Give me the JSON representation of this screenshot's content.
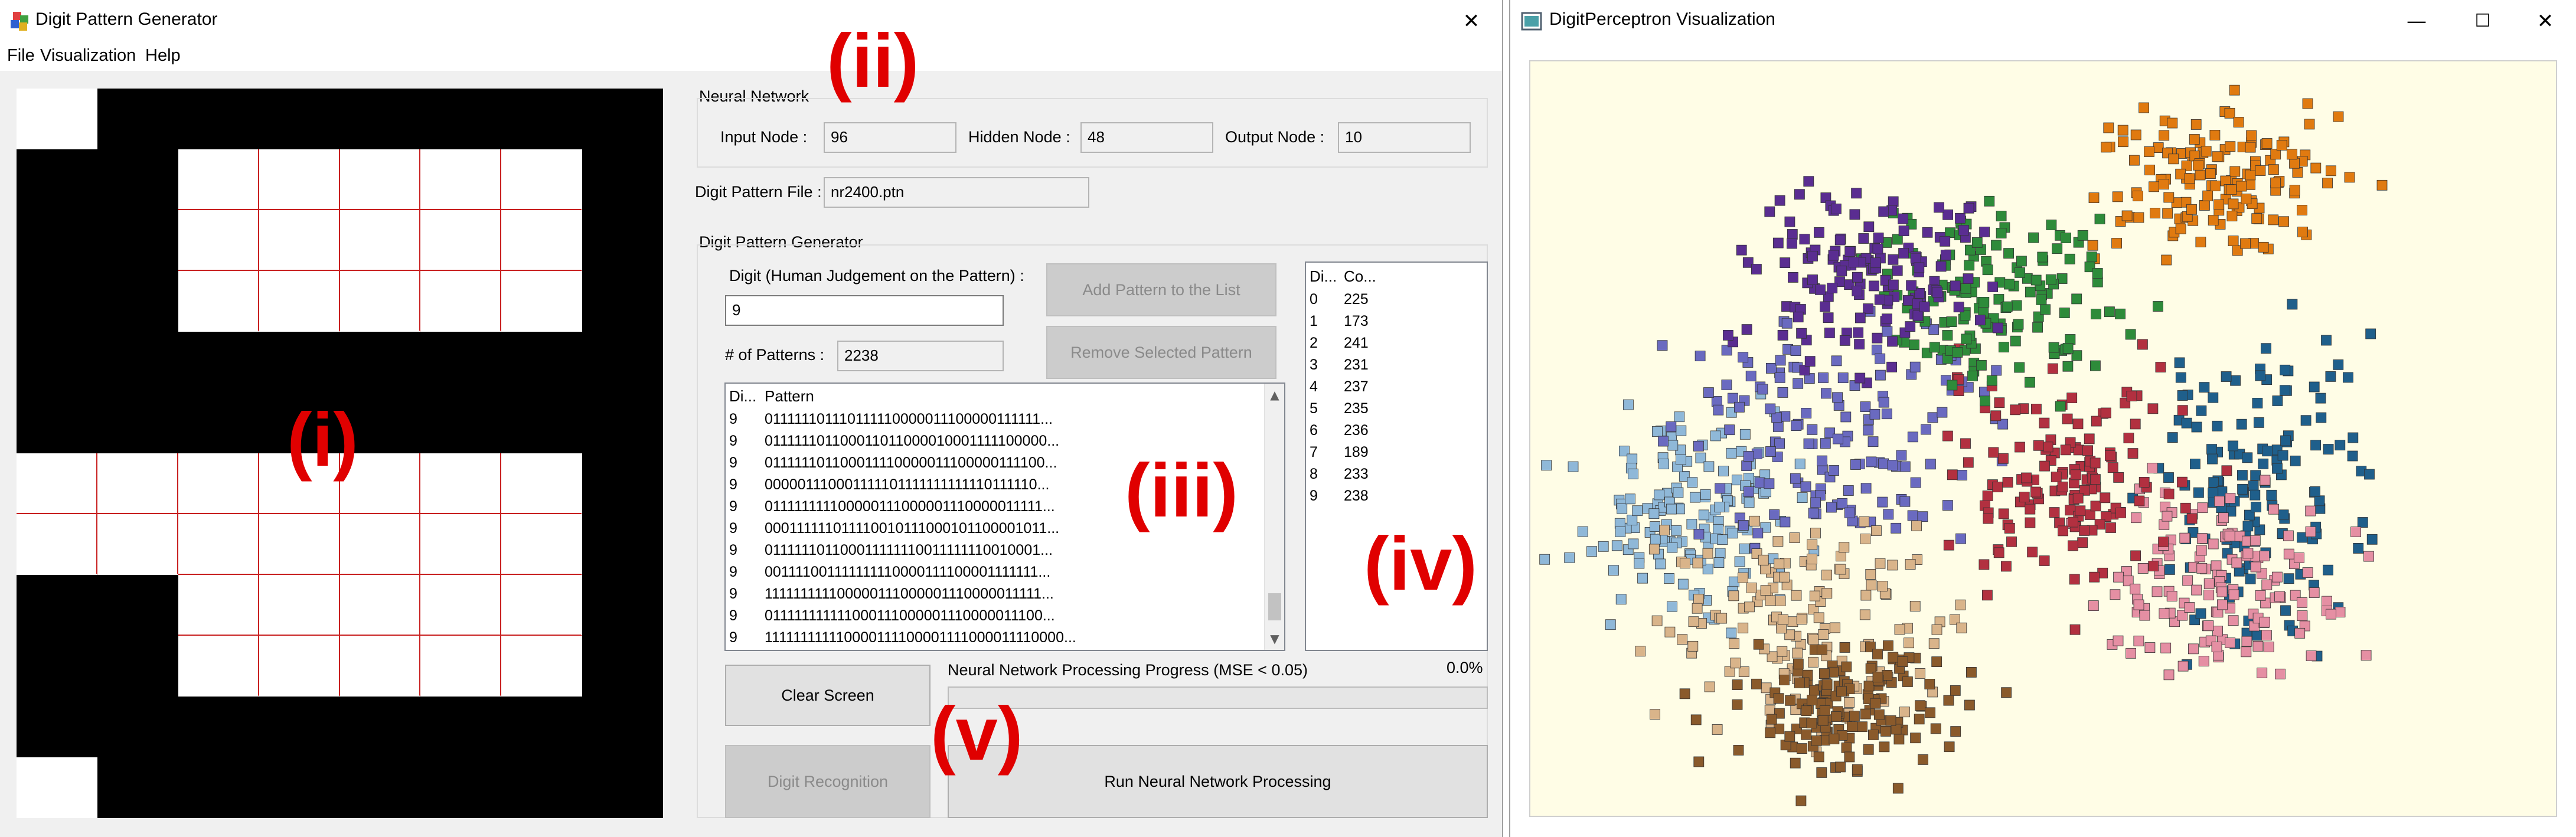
{
  "left_window": {
    "title": "Digit Pattern Generator",
    "icon": "app-colored-boxes-icon",
    "close_glyph": "✕"
  },
  "menu": {
    "file": "File",
    "visualization": "Visualization",
    "help": "Help"
  },
  "pattern_grid": {
    "rows": 12,
    "cols": 8,
    "cells": [
      [
        1,
        0,
        0,
        0,
        0,
        0,
        0,
        0
      ],
      [
        0,
        0,
        1,
        1,
        1,
        1,
        1,
        0
      ],
      [
        0,
        0,
        1,
        1,
        1,
        1,
        1,
        0
      ],
      [
        0,
        0,
        1,
        1,
        1,
        1,
        1,
        0
      ],
      [
        0,
        0,
        0,
        0,
        0,
        0,
        0,
        0
      ],
      [
        0,
        0,
        0,
        0,
        0,
        0,
        0,
        0
      ],
      [
        1,
        1,
        1,
        1,
        1,
        1,
        1,
        0
      ],
      [
        1,
        1,
        1,
        1,
        1,
        1,
        1,
        0
      ],
      [
        0,
        0,
        1,
        1,
        1,
        1,
        1,
        0
      ],
      [
        0,
        0,
        1,
        1,
        1,
        1,
        1,
        0
      ],
      [
        0,
        0,
        0,
        0,
        0,
        0,
        0,
        0
      ],
      [
        1,
        0,
        0,
        0,
        0,
        0,
        0,
        0
      ]
    ],
    "on_color": "#ffffff",
    "off_color": "#000000",
    "grid_line_color": "#c82020"
  },
  "neural_network": {
    "group_label": "Neural Network",
    "input_label": "Input Node :",
    "input_value": "96",
    "hidden_label": "Hidden Node :",
    "hidden_value": "48",
    "output_label": "Output Node :",
    "output_value": "10"
  },
  "pattern_file": {
    "label": "Digit Pattern File :",
    "value": "nr2400.ptn"
  },
  "generator": {
    "group_label": "Digit Pattern Generator",
    "digit_label": "Digit (Human Judgement on the Pattern) :",
    "digit_value": "9",
    "count_label": "# of Patterns :",
    "count_value": "2238",
    "add_button": "Add Pattern to the List",
    "remove_button": "Remove Selected Pattern"
  },
  "pattern_list": {
    "headers": [
      "Di...",
      "Pattern"
    ],
    "rows": [
      [
        "9",
        "011111101110111110000011100000111111..."
      ],
      [
        "9",
        "011111101100011011000010001111100000..."
      ],
      [
        "9",
        "011111101100011110000011100000111100..."
      ],
      [
        "9",
        "000001110001111101111111111110111110..."
      ],
      [
        "9",
        "011111111100000111000001110000011111..."
      ],
      [
        "9",
        "000111111011110010111000101100001011..."
      ],
      [
        "9",
        "011111101100011111110011111110010001..."
      ],
      [
        "9",
        "001111001111111110000111100001111111..."
      ],
      [
        "9",
        "111111111100000111000001110000011111..."
      ],
      [
        "9",
        "011111111111000111000001110000011100..."
      ],
      [
        "9",
        "111111111110000111100001111000011110000..."
      ]
    ],
    "scroll_up": "▲",
    "scroll_down": "▼"
  },
  "digit_counts": {
    "headers": [
      "Di...",
      "Co..."
    ],
    "rows": [
      [
        "0",
        "225"
      ],
      [
        "1",
        "173"
      ],
      [
        "2",
        "241"
      ],
      [
        "3",
        "231"
      ],
      [
        "4",
        "237"
      ],
      [
        "5",
        "235"
      ],
      [
        "6",
        "236"
      ],
      [
        "7",
        "189"
      ],
      [
        "8",
        "233"
      ],
      [
        "9",
        "238"
      ]
    ]
  },
  "controls": {
    "clear_button": "Clear Screen",
    "progress_label": "Neural Network Processing Progress (MSE < 0.05)",
    "progress_percent": "0.0%",
    "progress_value": 0.0,
    "recognition_button": "Digit Recognition",
    "run_button": "Run Neural Network Processing"
  },
  "annotations": {
    "i": "(i)",
    "ii": "(ii)",
    "iii": "(iii)",
    "iv": "(iv)",
    "v": "(v)",
    "color": "#e00000"
  },
  "right_window": {
    "title": "DigitPerceptron Visualization",
    "icon": "perceptron-window-icon",
    "minimize_glyph": "—",
    "maximize_glyph": "☐",
    "close_glyph": "✕",
    "plot_background": "#fffde6",
    "digit_colors": {
      "0": "#8fb8d8",
      "1": "#1f5f8b",
      "2": "#e58fa3",
      "3": "#6a6ac0",
      "4": "#b23040",
      "5": "#d9b48a",
      "6": "#8a5a2b",
      "7": "#e07a10",
      "8": "#2e8b3a",
      "9": "#5a2d91"
    }
  }
}
